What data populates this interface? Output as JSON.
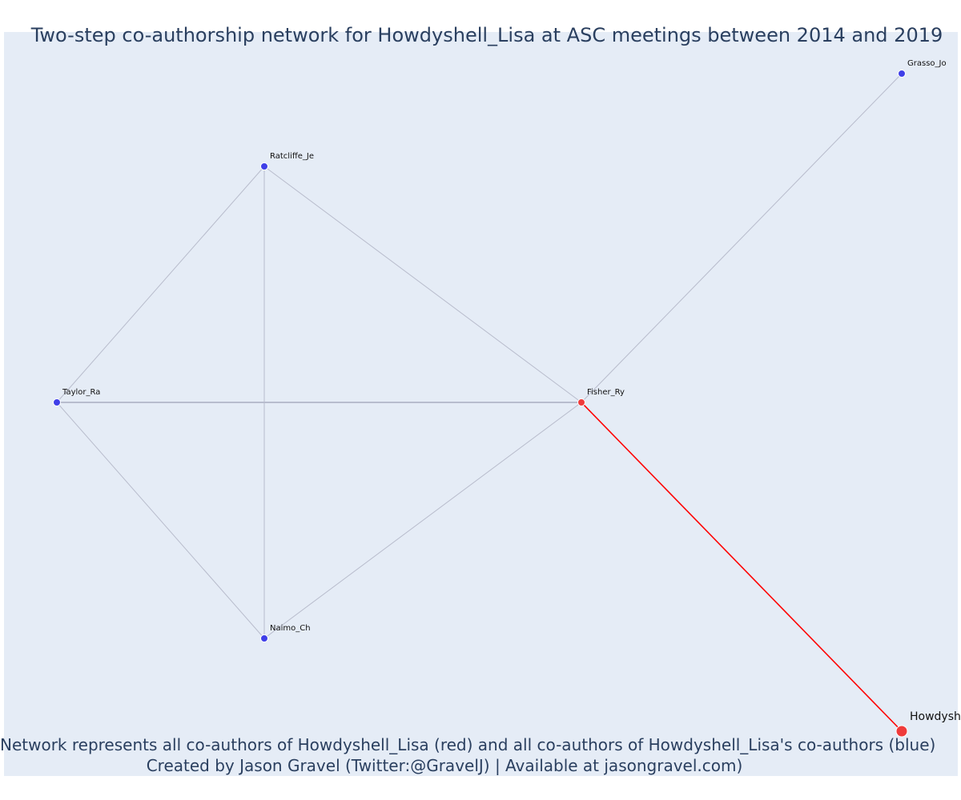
{
  "title": "Two-step co-authorship network for Howdyshell_Lisa at ASC meetings between 2014 and 2019",
  "caption": {
    "line1": "Network represents all co-authors of Howdyshell_Lisa (red) and all co-authors of Howdyshell_Lisa's co-authors (blue)",
    "line2": "Created by Jason Gravel (Twitter:@GravelJ) | Available at jasongravel.com)"
  },
  "colors": {
    "background": "#e5ecf6",
    "focal": "#ef3b3b",
    "coauthor": "#ef3b3b",
    "second_step": "#3f3fe8",
    "edge": "#b8bccc",
    "focal_edge": "#ff0000"
  },
  "network": {
    "nodes": [
      {
        "id": "Howdyshell_Lisa",
        "label": "Howdysh",
        "group": "focal"
      },
      {
        "id": "Fisher_Ry",
        "label": "Fisher_Ry",
        "group": "coauthor"
      },
      {
        "id": "Grasso_Jo",
        "label": "Grasso_Jo",
        "group": "second_step"
      },
      {
        "id": "Ratcliffe_Je",
        "label": "Ratcliffe_Je",
        "group": "second_step"
      },
      {
        "id": "Taylor_Ra",
        "label": "Taylor_Ra",
        "group": "second_step"
      },
      {
        "id": "Naimo_Ch",
        "label": "Naimo_Ch",
        "group": "second_step"
      }
    ],
    "edges": [
      {
        "source": "Howdyshell_Lisa",
        "target": "Fisher_Ry",
        "focal": true
      },
      {
        "source": "Fisher_Ry",
        "target": "Grasso_Jo",
        "focal": false
      },
      {
        "source": "Fisher_Ry",
        "target": "Ratcliffe_Je",
        "focal": false
      },
      {
        "source": "Fisher_Ry",
        "target": "Taylor_Ra",
        "focal": false
      },
      {
        "source": "Fisher_Ry",
        "target": "Naimo_Ch",
        "focal": false
      },
      {
        "source": "Ratcliffe_Je",
        "target": "Taylor_Ra",
        "focal": false
      },
      {
        "source": "Ratcliffe_Je",
        "target": "Naimo_Ch",
        "focal": false
      },
      {
        "source": "Taylor_Ra",
        "target": "Naimo_Ch",
        "focal": false
      }
    ]
  }
}
